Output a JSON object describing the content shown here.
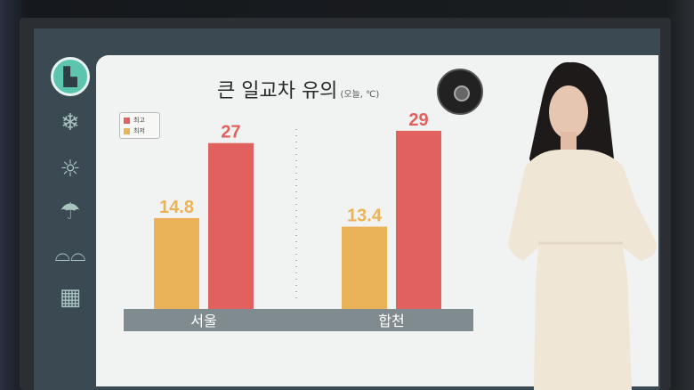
{
  "sidebar": {
    "items": [
      {
        "icon": "bar-chart-icon",
        "active": true
      },
      {
        "icon": "snowflake-thermometer-icon"
      },
      {
        "icon": "sun-thermometer-icon"
      },
      {
        "icon": "umbrella-icon"
      },
      {
        "icon": "sunglasses-icon"
      },
      {
        "icon": "calendar-icon"
      }
    ]
  },
  "chart_data": {
    "type": "bar",
    "title": "큰 일교차 유의",
    "subtitle": "(오늘, ℃)",
    "categories": [
      "서울",
      "합천"
    ],
    "series": [
      {
        "name": "최저",
        "values": [
          14.8,
          13.4
        ],
        "color": "#eab35a"
      },
      {
        "name": "최고",
        "values": [
          27,
          29
        ],
        "color": "#e0615e"
      }
    ],
    "data_labels": [
      [
        "14.8",
        "13.4"
      ],
      [
        "27",
        "29"
      ]
    ],
    "legend": {
      "position": "top-left",
      "order": [
        "최고",
        "최저"
      ]
    },
    "ylim": [
      0,
      29
    ],
    "grid": false
  }
}
